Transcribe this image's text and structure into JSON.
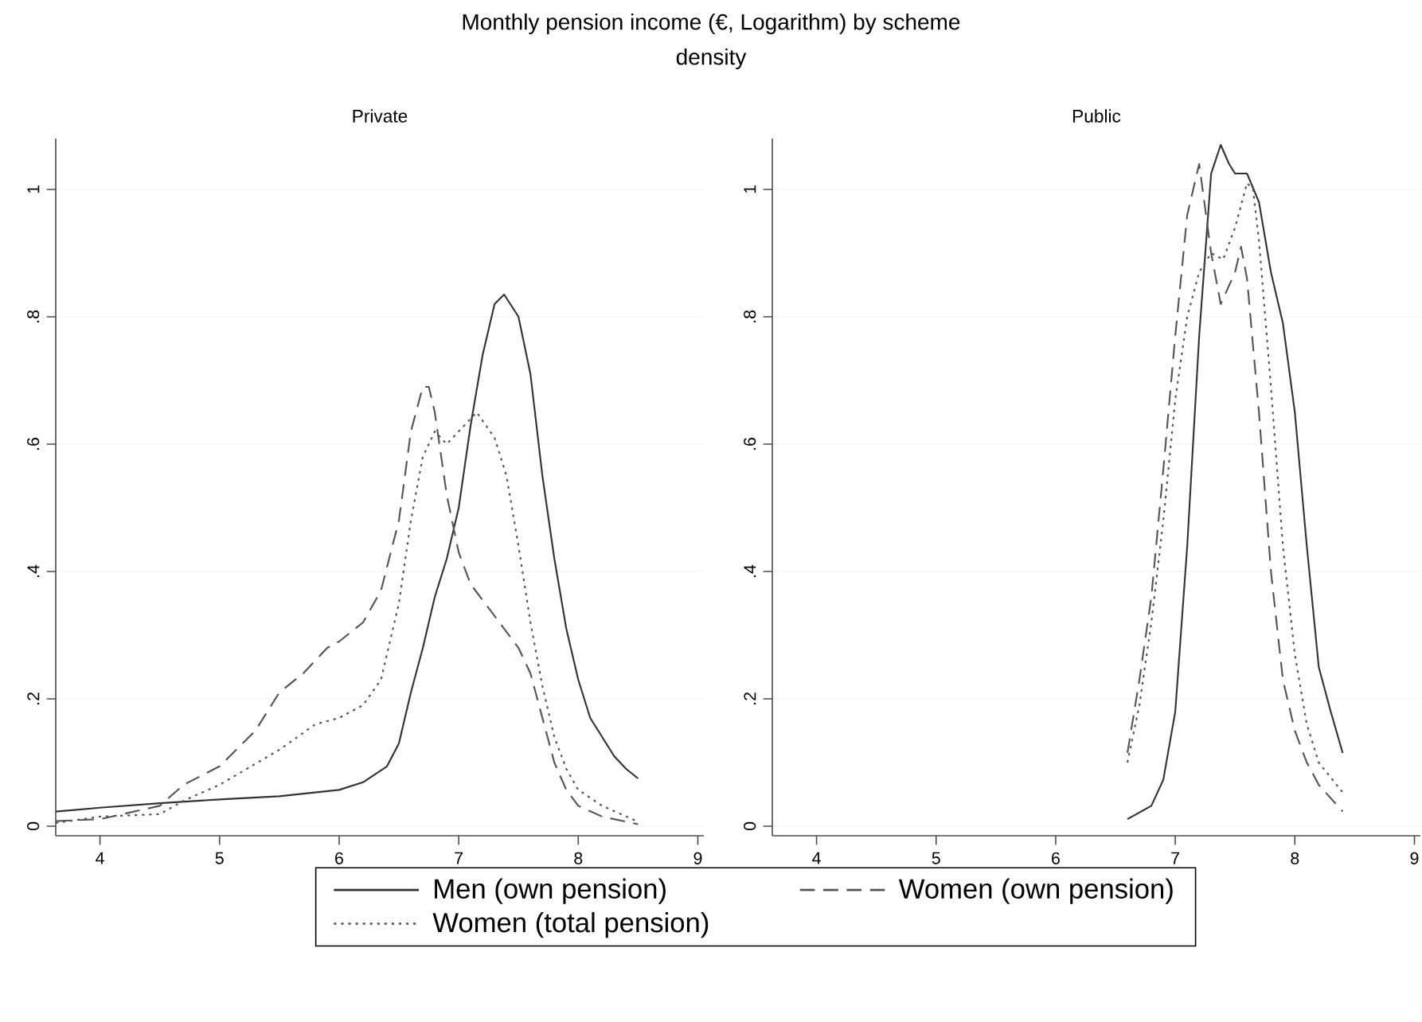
{
  "chart_data": [
    {
      "type": "line",
      "title": "Private",
      "annotations": [
        "Monthly pension income (€, Logarithm) by scheme"
      ],
      "ylabel": "density",
      "xlim": [
        3.63,
        9.05
      ],
      "ylim": [
        -0.015,
        1.08
      ],
      "xticks": [
        4,
        5,
        6,
        7,
        8,
        9
      ],
      "yticks": [
        0,
        {
          "value": 0.2,
          "label": ".2"
        },
        {
          "value": 0.4,
          "label": ".4"
        },
        {
          "value": 0.6,
          "label": ".6"
        },
        {
          "value": 0.8,
          "label": ".8"
        },
        1
      ],
      "grid": "y",
      "legend": "bottom",
      "series": [
        {
          "name": "Men (own pension)",
          "color": "#333333",
          "line_style": "solid",
          "x": [
            3.63,
            4.0,
            4.5,
            5.0,
            5.5,
            6.0,
            6.2,
            6.4,
            6.5,
            6.6,
            6.7,
            6.8,
            6.9,
            7.0,
            7.1,
            7.2,
            7.3,
            7.38,
            7.5,
            7.6,
            7.7,
            7.8,
            7.9,
            8.0,
            8.1,
            8.2,
            8.3,
            8.4,
            8.5
          ],
          "values": [
            0.023,
            0.029,
            0.036,
            0.042,
            0.047,
            0.057,
            0.069,
            0.094,
            0.13,
            0.21,
            0.28,
            0.36,
            0.42,
            0.5,
            0.63,
            0.74,
            0.82,
            0.835,
            0.8,
            0.71,
            0.55,
            0.42,
            0.31,
            0.23,
            0.17,
            0.14,
            0.11,
            0.09,
            0.075
          ]
        },
        {
          "name": "Women (own pension)",
          "color": "#555555",
          "line_style": "dashed",
          "x": [
            3.63,
            4.0,
            4.5,
            4.7,
            5.0,
            5.3,
            5.5,
            5.7,
            5.9,
            6.0,
            6.2,
            6.35,
            6.5,
            6.6,
            6.7,
            6.75,
            6.8,
            6.9,
            7.0,
            7.1,
            7.3,
            7.5,
            7.6,
            7.7,
            7.8,
            7.9,
            8.0,
            8.2,
            8.5
          ],
          "values": [
            0.008,
            0.011,
            0.032,
            0.065,
            0.094,
            0.15,
            0.21,
            0.24,
            0.28,
            0.29,
            0.32,
            0.37,
            0.48,
            0.62,
            0.69,
            0.69,
            0.65,
            0.52,
            0.43,
            0.38,
            0.33,
            0.28,
            0.24,
            0.17,
            0.1,
            0.057,
            0.032,
            0.015,
            0.003
          ]
        },
        {
          "name": "Women (total pension)",
          "color": "#555555",
          "line_style": "dotted",
          "x": [
            3.63,
            4.0,
            4.5,
            4.7,
            5.0,
            5.5,
            5.8,
            6.0,
            6.2,
            6.35,
            6.5,
            6.6,
            6.7,
            6.8,
            6.9,
            7.0,
            7.15,
            7.3,
            7.4,
            7.5,
            7.6,
            7.7,
            7.8,
            7.9,
            8.0,
            8.2,
            8.5
          ],
          "values": [
            0.005,
            0.015,
            0.019,
            0.04,
            0.065,
            0.12,
            0.16,
            0.17,
            0.19,
            0.23,
            0.35,
            0.48,
            0.58,
            0.62,
            0.6,
            0.62,
            0.65,
            0.61,
            0.55,
            0.44,
            0.32,
            0.22,
            0.14,
            0.09,
            0.057,
            0.032,
            0.007
          ]
        }
      ]
    },
    {
      "type": "line",
      "title": "Public",
      "xlim": [
        3.63,
        9.05
      ],
      "ylim": [
        -0.015,
        1.08
      ],
      "xticks": [
        4,
        5,
        6,
        7,
        8,
        9
      ],
      "yticks": [
        0,
        {
          "value": 0.2,
          "label": ".2"
        },
        {
          "value": 0.4,
          "label": ".4"
        },
        {
          "value": 0.6,
          "label": ".6"
        },
        {
          "value": 0.8,
          "label": ".8"
        },
        1
      ],
      "grid": "y",
      "series": [
        {
          "color": "#333333",
          "line_style": "solid",
          "x": [
            6.6,
            6.8,
            6.9,
            7.0,
            7.1,
            7.2,
            7.3,
            7.38,
            7.45,
            7.5,
            7.6,
            7.7,
            7.8,
            7.9,
            8.0,
            8.1,
            8.2,
            8.3,
            8.4
          ],
          "values": [
            0.011,
            0.032,
            0.073,
            0.18,
            0.44,
            0.77,
            1.025,
            1.07,
            1.04,
            1.025,
            1.025,
            0.98,
            0.87,
            0.79,
            0.65,
            0.44,
            0.25,
            0.18,
            0.115
          ]
        },
        {
          "color": "#555555",
          "line_style": "dashed",
          "x": [
            6.6,
            6.7,
            6.8,
            6.9,
            7.0,
            7.1,
            7.2,
            7.3,
            7.38,
            7.5,
            7.55,
            7.6,
            7.7,
            7.8,
            7.9,
            8.0,
            8.1,
            8.2,
            8.4
          ],
          "values": [
            0.115,
            0.23,
            0.36,
            0.56,
            0.77,
            0.96,
            1.04,
            0.9,
            0.82,
            0.87,
            0.91,
            0.86,
            0.65,
            0.4,
            0.23,
            0.15,
            0.1,
            0.065,
            0.023
          ]
        },
        {
          "color": "#555555",
          "line_style": "dotted",
          "x": [
            6.6,
            6.7,
            6.8,
            6.9,
            7.0,
            7.1,
            7.2,
            7.3,
            7.4,
            7.5,
            7.6,
            7.65,
            7.7,
            7.8,
            7.9,
            8.0,
            8.1,
            8.2,
            8.4
          ],
          "values": [
            0.1,
            0.19,
            0.32,
            0.48,
            0.67,
            0.8,
            0.87,
            0.9,
            0.89,
            0.94,
            1.01,
            1.0,
            0.92,
            0.69,
            0.44,
            0.27,
            0.16,
            0.1,
            0.053
          ]
        }
      ]
    }
  ]
}
